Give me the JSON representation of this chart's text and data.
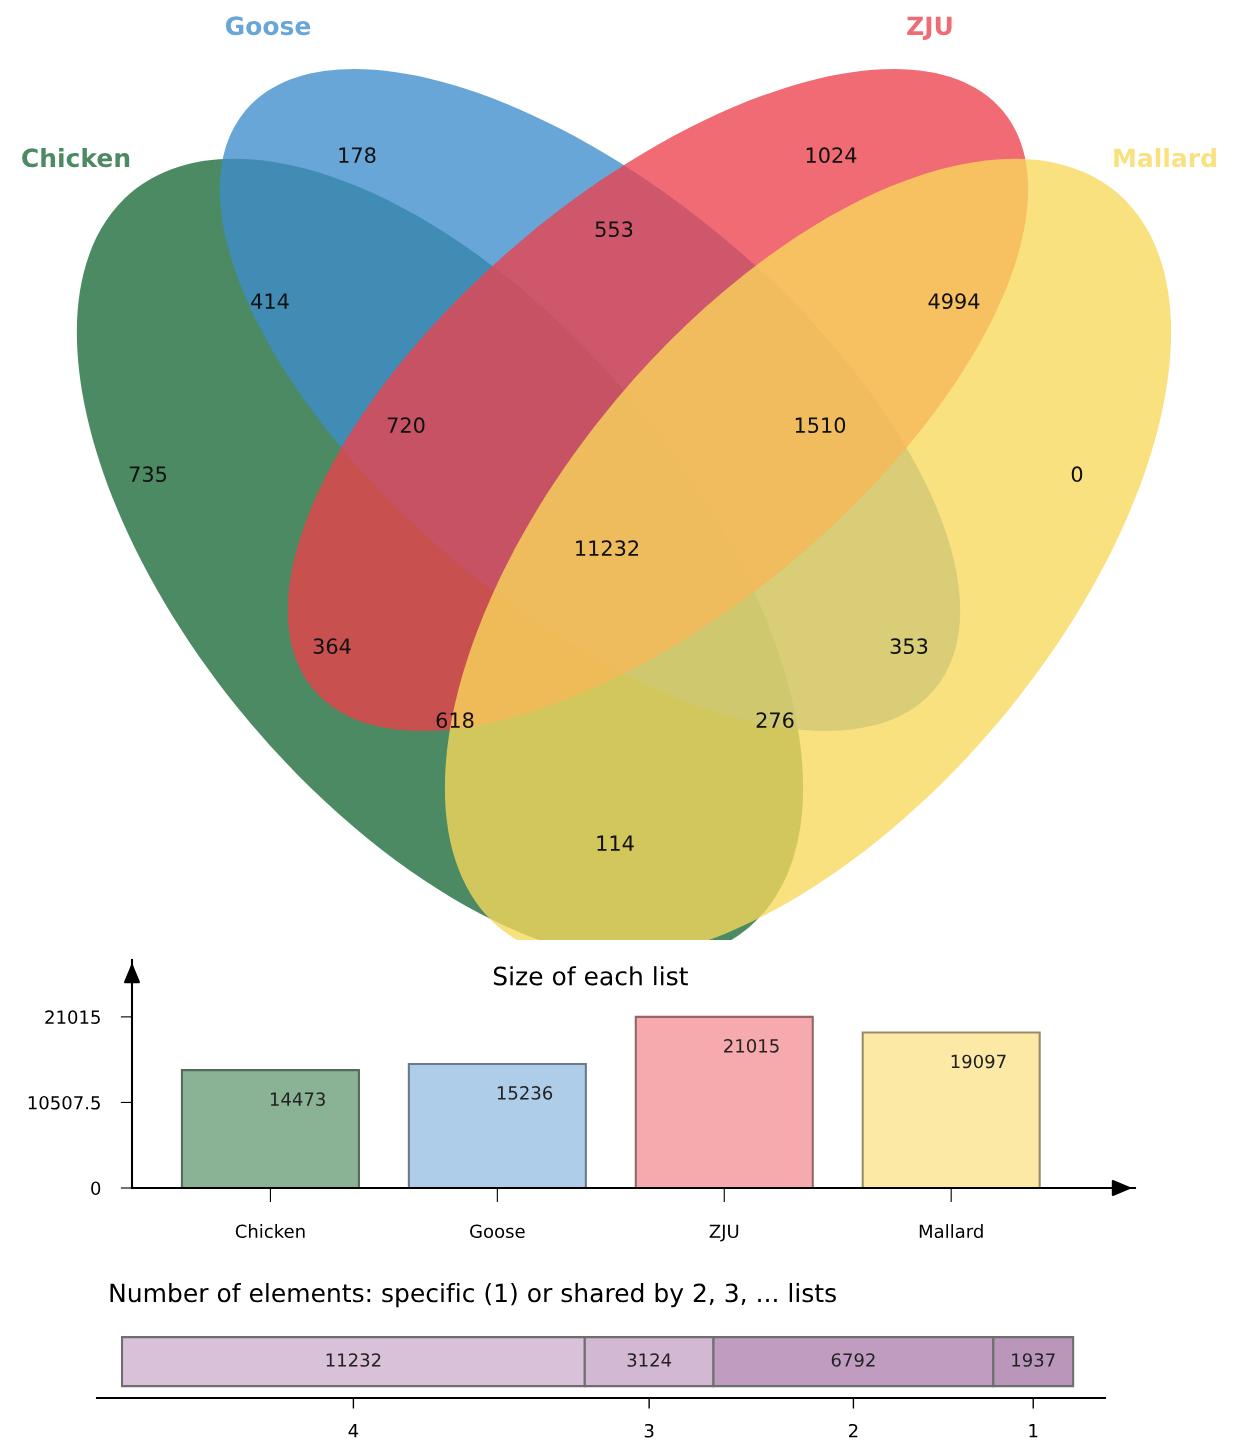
{
  "chart_data": [
    {
      "type": "other",
      "categories": [
        null,
        null,
        null,
        null,
        null,
        null,
        null,
        null,
        null,
        null,
        null,
        null,
        null,
        null,
        null
      ],
      "values": [
        178,
        1024,
        553,
        414,
        4994,
        720,
        1510,
        735,
        0,
        11232,
        364,
        353,
        618,
        276,
        114
      ],
      "data_labels": true,
      "annotations": [
        "Chicken",
        "Goose",
        "ZJU",
        "Mallard"
      ],
      "colors": [
        "#68a6d8",
        "#f06b73",
        "#c27083",
        "#4a8ba0",
        "#f3a761",
        "#a77079",
        "#e0a872",
        "#4b8a62",
        "#fae17f",
        "#d2a66c",
        "#b36255",
        "#bac293",
        "#d8a458",
        "#a9b878",
        "#b2b85a"
      ]
    },
    {
      "type": "bar",
      "title": "Size of each list",
      "categories": [
        "Chicken",
        "Goose",
        "ZJU",
        "Mallard"
      ],
      "values": [
        14473,
        15236,
        21015,
        19097
      ],
      "colors": [
        "#8ab396",
        "#aecde9",
        "#f6aaad",
        "#fce9a6"
      ],
      "ylim": [
        0,
        28000
      ],
      "yticks": [
        0,
        10507.5,
        21015
      ],
      "data_labels": true
    },
    {
      "type": "bar",
      "orientation": "horizontal",
      "stacked": true,
      "title": "Number of elements: specific (1) or shared by 2, 3, ... lists",
      "categories": [
        null
      ],
      "series": [
        {
          "name": "4",
          "color": "#d8c1d9",
          "values": [
            11232
          ]
        },
        {
          "name": "3",
          "color": "#d3b8d4",
          "values": [
            3124
          ]
        },
        {
          "name": "2",
          "color": "#c09cc0",
          "values": [
            6792
          ]
        },
        {
          "name": "1",
          "color": "#b996ba",
          "values": [
            1937
          ]
        }
      ],
      "data_labels": true
    }
  ]
}
